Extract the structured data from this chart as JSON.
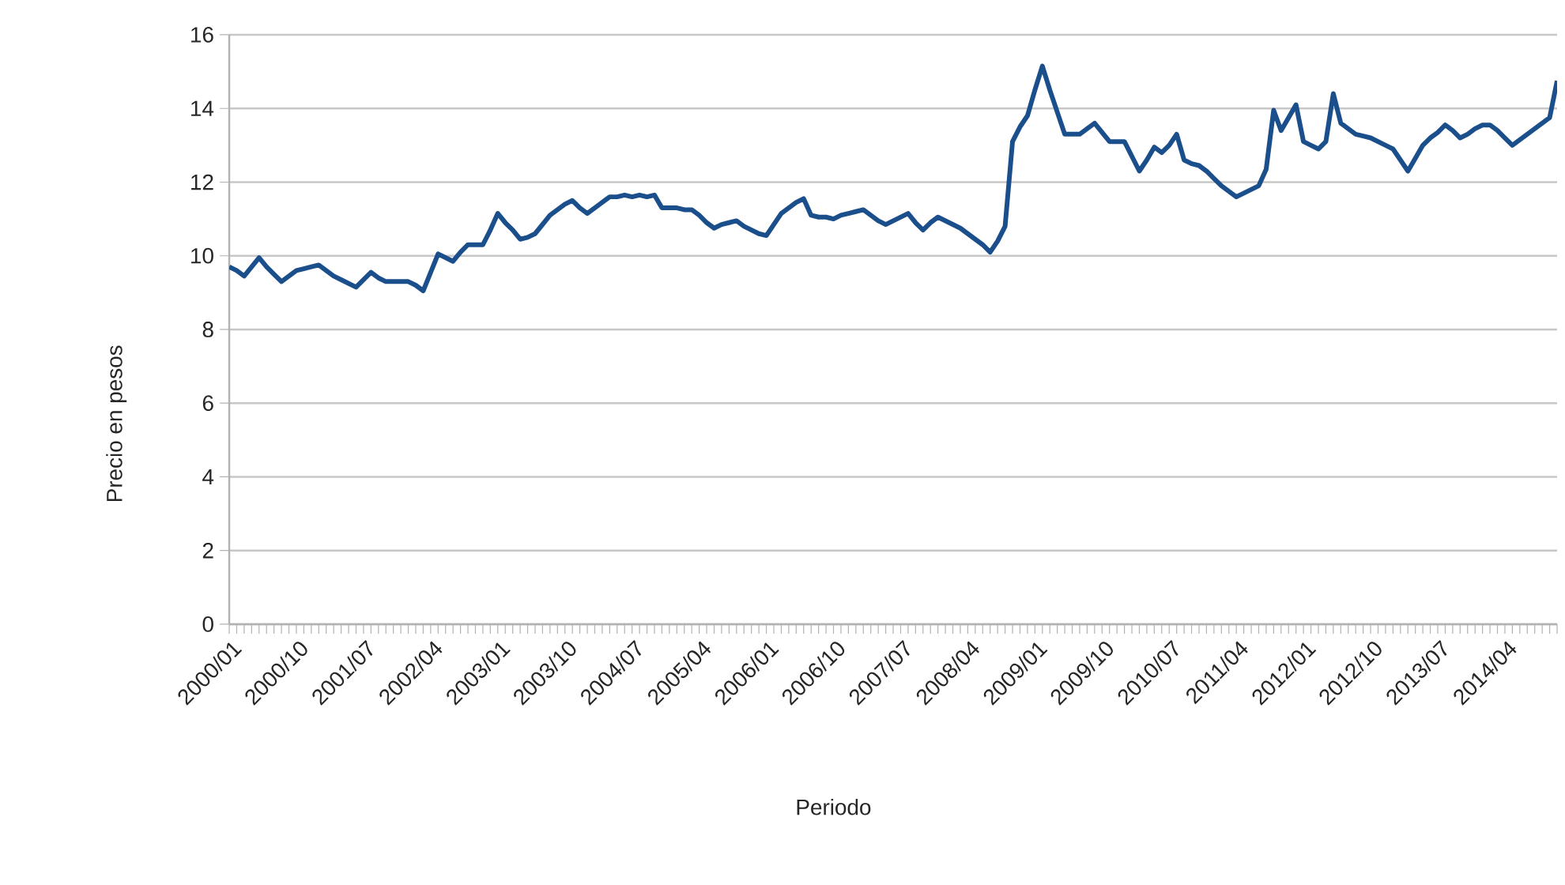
{
  "chart_data": {
    "type": "line",
    "xlabel": "Periodo",
    "ylabel": "Precio en pesos",
    "categories": [
      "2000/01",
      null,
      null,
      null,
      null,
      null,
      null,
      null,
      null,
      "2000/10",
      null,
      null,
      null,
      null,
      null,
      null,
      null,
      null,
      "2001/07",
      null,
      null,
      null,
      null,
      null,
      null,
      null,
      null,
      "2002/04",
      null,
      null,
      null,
      null,
      null,
      null,
      null,
      null,
      "2003/01",
      null,
      null,
      null,
      null,
      null,
      null,
      null,
      null,
      "2003/10",
      null,
      null,
      null,
      null,
      null,
      null,
      null,
      null,
      "2004/07",
      null,
      null,
      null,
      null,
      null,
      null,
      null,
      null,
      "2005/04",
      null,
      null,
      null,
      null,
      null,
      null,
      null,
      null,
      "2006/01",
      null,
      null,
      null,
      null,
      null,
      null,
      null,
      null,
      "2006/10",
      null,
      null,
      null,
      null,
      null,
      null,
      null,
      null,
      "2007/07",
      null,
      null,
      null,
      null,
      null,
      null,
      null,
      null,
      "2008/04",
      null,
      null,
      null,
      null,
      null,
      null,
      null,
      null,
      "2009/01",
      null,
      null,
      null,
      null,
      null,
      null,
      null,
      null,
      "2009/10",
      null,
      null,
      null,
      null,
      null,
      null,
      null,
      null,
      "2010/07",
      null,
      null,
      null,
      null,
      null,
      null,
      null,
      null,
      "2011/04",
      null,
      null,
      null,
      null,
      null,
      null,
      null,
      null,
      "2012/01",
      null,
      null,
      null,
      null,
      null,
      null,
      null,
      null,
      "2012/10",
      null,
      null,
      null,
      null,
      null,
      null,
      null,
      null,
      "2013/07",
      null,
      null,
      null,
      null,
      null,
      null,
      null,
      null,
      "2014/04",
      null,
      null,
      null,
      null,
      null,
      null,
      null
    ],
    "series": [
      {
        "color": "#1b4f8c",
        "values": [
          9.7,
          9.6,
          9.45,
          9.7,
          9.95,
          9.7,
          9.5,
          9.3,
          9.45,
          9.6,
          9.65,
          9.7,
          9.75,
          9.6,
          9.45,
          9.35,
          9.25,
          9.15,
          9.35,
          9.55,
          9.4,
          9.3,
          9.3,
          9.3,
          9.3,
          9.2,
          9.05,
          9.55,
          10.05,
          9.95,
          9.85,
          10.1,
          10.3,
          10.3,
          10.3,
          10.7,
          11.15,
          10.9,
          10.7,
          10.45,
          10.5,
          10.6,
          10.85,
          11.1,
          11.25,
          11.4,
          11.5,
          11.3,
          11.15,
          11.3,
          11.45,
          11.6,
          11.6,
          11.65,
          11.6,
          11.65,
          11.6,
          11.65,
          11.3,
          11.3,
          11.3,
          11.25,
          11.25,
          11.1,
          10.9,
          10.75,
          10.85,
          10.9,
          10.95,
          10.8,
          10.7,
          10.6,
          10.55,
          10.85,
          11.15,
          11.3,
          11.45,
          11.55,
          11.1,
          11.05,
          11.05,
          11.0,
          11.1,
          11.15,
          11.2,
          11.25,
          11.1,
          10.95,
          10.85,
          10.95,
          11.05,
          11.15,
          10.9,
          10.7,
          10.9,
          11.05,
          10.95,
          10.85,
          10.75,
          10.6,
          10.45,
          10.3,
          10.1,
          10.4,
          10.8,
          13.1,
          13.5,
          13.8,
          14.5,
          15.15,
          14.5,
          13.9,
          13.3,
          13.3,
          13.3,
          13.45,
          13.6,
          13.35,
          13.1,
          13.1,
          13.1,
          12.7,
          12.3,
          12.6,
          12.95,
          12.8,
          13.0,
          13.3,
          12.6,
          12.5,
          12.45,
          12.3,
          12.1,
          11.9,
          11.75,
          11.6,
          11.7,
          11.8,
          11.9,
          12.35,
          13.95,
          13.4,
          13.75,
          14.1,
          13.1,
          13.0,
          12.9,
          13.1,
          14.4,
          13.6,
          13.45,
          13.3,
          13.25,
          13.2,
          13.1,
          13.0,
          12.9,
          12.6,
          12.3,
          12.65,
          13.0,
          13.2,
          13.35,
          13.55,
          13.4,
          13.2,
          13.3,
          13.45,
          13.55,
          13.55,
          13.4,
          13.2,
          13.0,
          13.15,
          13.3,
          13.45,
          13.6,
          13.75,
          14.75
        ]
      }
    ],
    "ylim": [
      0,
      16
    ],
    "yticks": [
      0,
      2,
      4,
      6,
      8,
      10,
      12,
      14,
      16
    ],
    "grid": "y"
  }
}
